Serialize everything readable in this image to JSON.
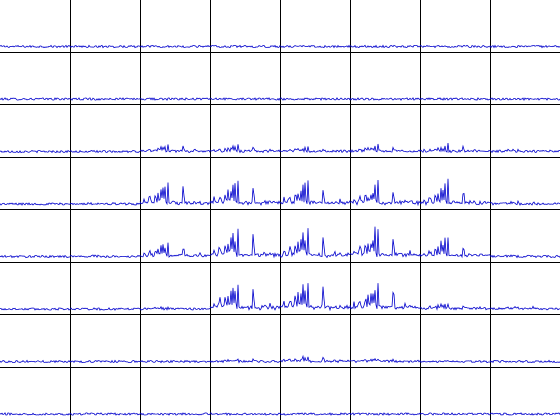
{
  "chart_data": {
    "type": "line",
    "title": "",
    "xlabel": "",
    "ylabel": "",
    "grid": true,
    "legend": "none",
    "line_color": "#0000cc",
    "grid_color": "#000000",
    "panel_grid": {
      "rows": 8,
      "cols": 8
    },
    "spectrum_shape": [
      [
        0.06,
        1.0,
        0.18
      ],
      [
        0.14,
        2.0,
        0.28
      ],
      [
        0.22,
        1.6,
        0.34
      ],
      [
        0.26,
        1.0,
        0.46
      ],
      [
        0.3,
        1.2,
        0.58
      ],
      [
        0.33,
        1.0,
        0.66
      ],
      [
        0.36,
        0.8,
        0.8
      ],
      [
        0.4,
        0.7,
        0.95
      ],
      [
        0.62,
        0.8,
        1.0
      ],
      [
        0.78,
        1.0,
        0.1
      ],
      [
        0.86,
        1.0,
        0.12
      ]
    ],
    "panel_activity": [
      [
        0,
        0,
        0,
        0,
        0,
        0,
        0,
        0
      ],
      [
        0,
        0,
        0,
        0,
        0,
        0,
        0,
        0
      ],
      [
        0,
        0,
        0.18,
        0.16,
        0.14,
        0.16,
        0.16,
        0.06
      ],
      [
        0,
        0.03,
        0.55,
        0.62,
        0.6,
        0.58,
        0.58,
        0.06
      ],
      [
        0,
        0.02,
        0.42,
        0.78,
        0.76,
        0.76,
        0.5,
        0.05
      ],
      [
        0,
        0,
        0.05,
        0.72,
        0.8,
        0.76,
        0.17,
        0.06
      ],
      [
        0,
        0,
        0,
        0.05,
        0.14,
        0.1,
        0,
        0
      ],
      [
        0,
        0,
        0,
        0,
        0,
        0,
        0,
        0
      ]
    ]
  }
}
